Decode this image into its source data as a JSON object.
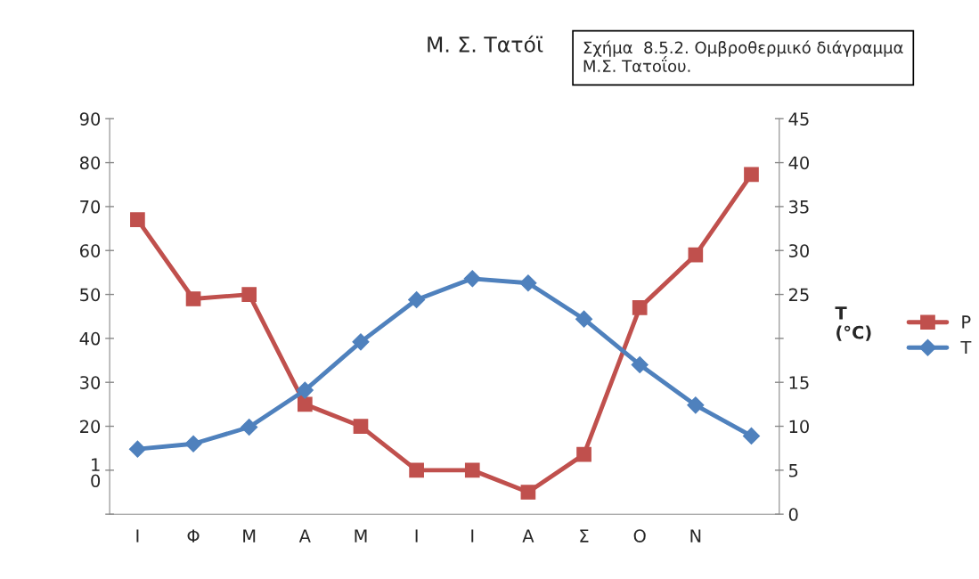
{
  "chart_data": {
    "type": "line",
    "title": "Μ. Σ. Τατόϊ",
    "categories": [
      "Ι",
      "Φ",
      "Μ",
      "Α",
      "Μ",
      "Ι",
      "Ι",
      "Α",
      "Σ",
      "Ο",
      "Ν",
      null
    ],
    "series": [
      {
        "name": "P",
        "color": "#c0504d",
        "marker": "square",
        "values": [
          67,
          49,
          50,
          25,
          20,
          10,
          10,
          5,
          13.6,
          47,
          59,
          77.3
        ]
      },
      {
        "name": "T",
        "color": "#4f81bd",
        "marker": "diamond",
        "axis": "y2",
        "values": [
          7.4,
          8.0,
          9.9,
          14.1,
          19.6,
          24.4,
          26.8,
          26.3,
          22.2,
          17.0,
          12.4,
          8.9
        ]
      }
    ],
    "ylim": [
      0,
      90
    ],
    "yticks": [
      {
        "value": 0,
        "label": null
      },
      {
        "value": 10,
        "label": "1\n0"
      },
      20,
      30,
      40,
      50,
      60,
      70,
      80,
      90
    ],
    "y2lim": [
      0,
      45
    ],
    "y2ticks": [
      0,
      5,
      10,
      15,
      {
        "value": 20,
        "label": null
      },
      25,
      30,
      35,
      40,
      45
    ],
    "y2label": "T\n(°C)",
    "annotations": [
      "Σχήμα  8.5.2. Ομβροθερμικό διάγραμμα\nΜ.Σ. Τατοΐου."
    ],
    "legend": "right",
    "grid": false,
    "line_style": "solid"
  }
}
